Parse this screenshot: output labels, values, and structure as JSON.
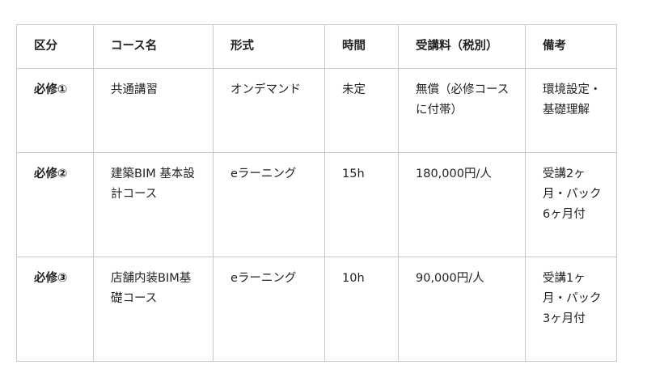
{
  "table": {
    "headers": [
      "区分",
      "コース名",
      "形式",
      "時間",
      "受講料（税別）",
      "備考"
    ],
    "rows": [
      [
        "必修①",
        "共通講習",
        "オンデマンド",
        "未定",
        "無償（必修コースに付帯）",
        "環境設定・基礎理解"
      ],
      [
        "必修②",
        "建築BIM 基本設計コース",
        "eラーニング",
        "15h",
        "180,000円/人",
        "受講2ヶ月・パック6ヶ月付"
      ],
      [
        "必修③",
        "店舗内装BIM基礎コース",
        "eラーニング",
        "10h",
        "90,000円/人",
        "受講1ヶ月・パック3ヶ月付"
      ]
    ]
  }
}
